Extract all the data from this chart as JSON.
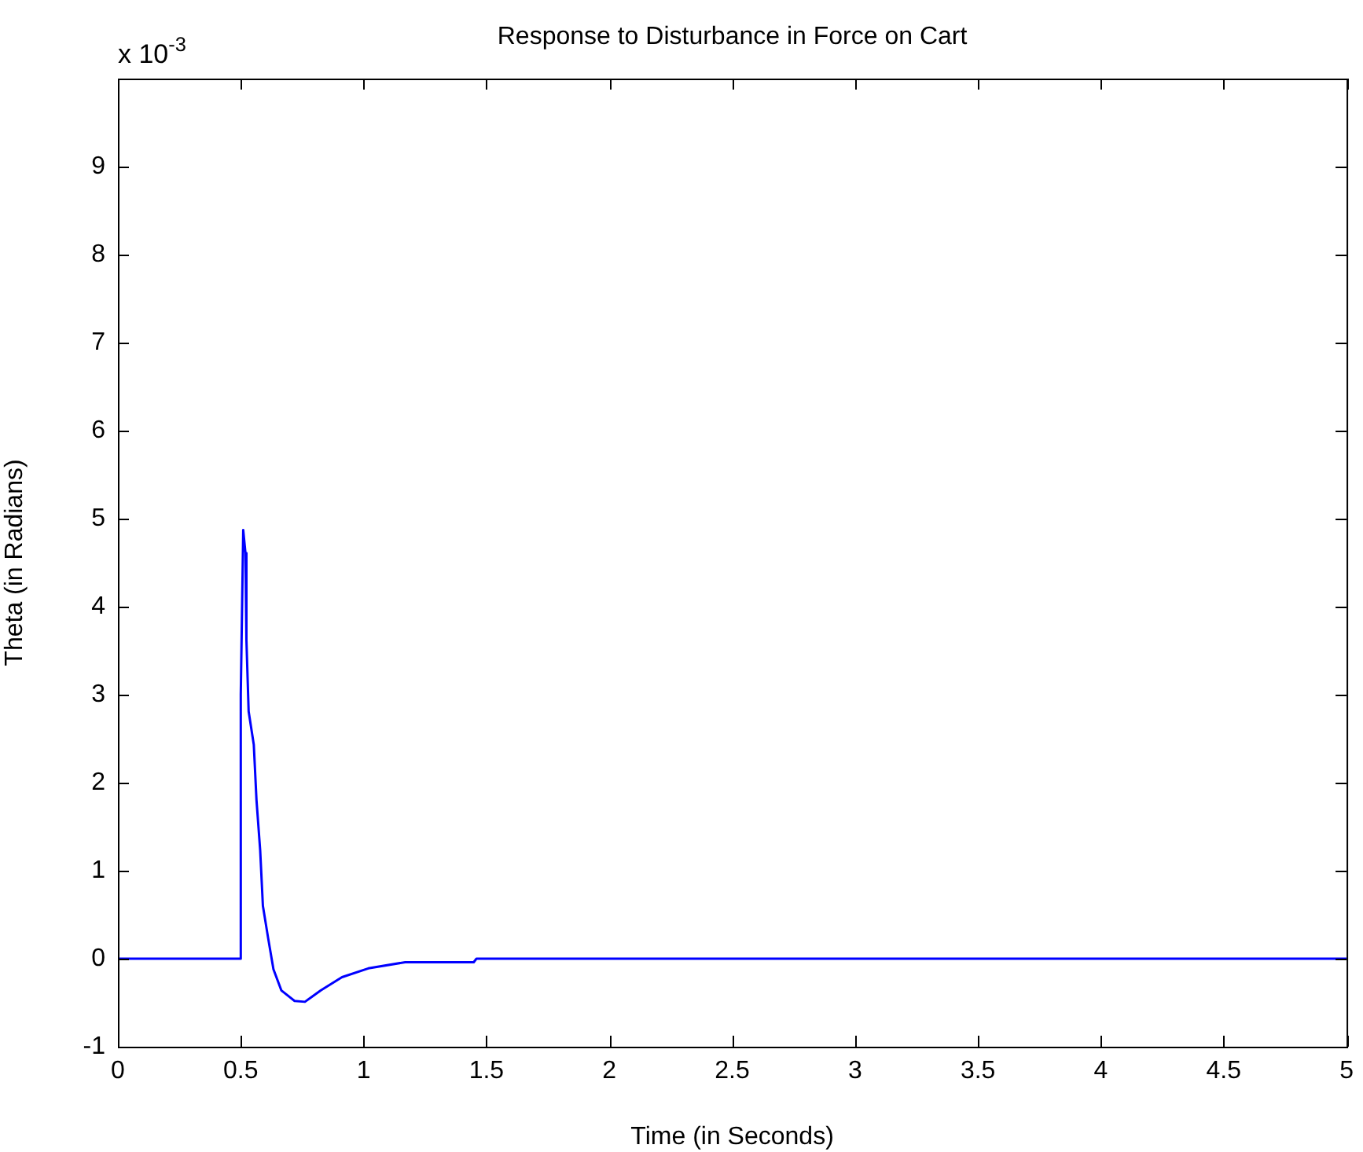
{
  "chart_data": {
    "type": "line",
    "title": "Response to Disturbance in Force on Cart",
    "xlabel": "Time (in Seconds)",
    "ylabel": "Theta (in Radians)",
    "annotations": [
      "x 10$^{-3}$"
    ],
    "xlim": [
      0,
      5
    ],
    "xticks": [
      0,
      0.5,
      1,
      1.5,
      2,
      2.5,
      3,
      3.5,
      4,
      4.5,
      5
    ],
    "ylim": [
      -1,
      10
    ],
    "yticks": [
      -1,
      0,
      1,
      2,
      3,
      4,
      5,
      6,
      7,
      8,
      9,
      {
        "value": 10,
        "label": null
      }
    ],
    "grid": false,
    "legend": false,
    "marker": "none",
    "line_style": "solid",
    "series": [
      {
        "color": "#0000ff",
        "x": [
          0,
          0.5,
          0.5,
          0.51,
          0.519,
          0.523,
          0.532,
          0.553,
          0.564,
          0.579,
          0.59,
          0.611,
          0.633,
          0.665,
          0.719,
          0.761,
          0.826,
          0.912,
          1.019,
          1.169,
          1.448,
          1.459,
          5
        ],
        "values": [
          0,
          0,
          3,
          4.87,
          4.61,
          3.62,
          2.81,
          2.43,
          1.8,
          1.23,
          0.6,
          0.24,
          -0.12,
          -0.36,
          -0.48,
          -0.49,
          -0.36,
          -0.21,
          -0.11,
          -0.04,
          -0.04,
          0,
          0
        ]
      }
    ]
  }
}
